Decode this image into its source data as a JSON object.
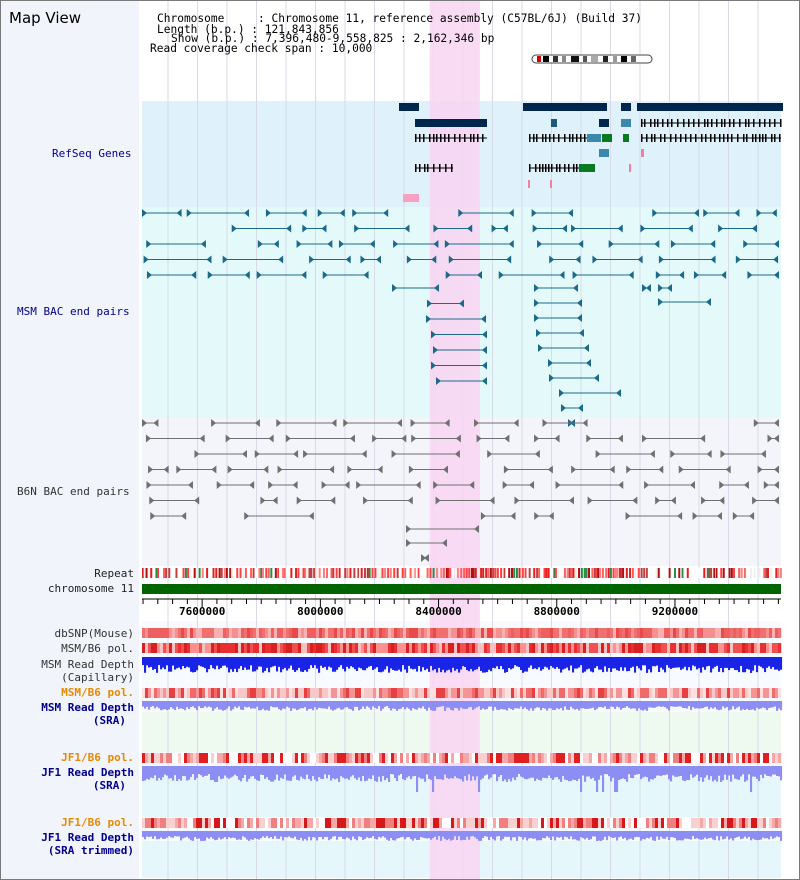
{
  "header": {
    "title": "Map View",
    "chromosome_label": "Chromosome",
    "chromosome_value": "Chromosome 11, reference assembly (C57BL/6J) (Build 37)",
    "length_label": "Length (b.p.)",
    "length_value": "121,843,856",
    "show_label": "Show (b.p.)",
    "show_value": "7,396,480-9,558,825 : 2,162,346 bp",
    "coverage_label": "Read coverage check span",
    "coverage_value": "10,000"
  },
  "tracks": {
    "refseq": "RefSeq Genes",
    "msm_bac": "MSM BAC end pairs",
    "b6n_bac": "B6N BAC end pairs",
    "repeat": "Repeat",
    "chromosome": "chromosome 11",
    "dbsnp": "dbSNP(Mouse)",
    "msm_b6_pol_1": "MSM/B6 pol.",
    "msm_depth_cap_1": "MSM Read Depth",
    "msm_depth_cap_2": "(Capillary)",
    "msm_b6_pol_2": "MSM/B6 pol.",
    "msm_depth_sra_1": "MSM Read Depth",
    "msm_depth_sra_2": "(SRA)",
    "jf1_b6_pol_1": "JF1/B6 pol.",
    "jf1_depth_sra_1": "JF1 Read Depth",
    "jf1_depth_sra_2": "(SRA)",
    "jf1_b6_pol_2": "JF1/B6 pol.",
    "jf1_depth_trim_1": "JF1 Read Depth",
    "jf1_depth_trim_2": "(SRA trimmed)"
  },
  "axis": {
    "ticks": [
      "7600000",
      "8000000",
      "8400000",
      "8800000",
      "9200000"
    ],
    "tick_values": [
      7600000,
      8000000,
      8400000,
      8800000,
      9200000
    ],
    "start": 7396480,
    "end": 9558825
  },
  "highlight": {
    "start": 8370000,
    "end": 8540000
  },
  "colors": {
    "highlight": "#f9d5f2",
    "refseq_bg": "#dff2fb",
    "msm_bg": "#e3f9fa",
    "b6n_bg": "#f4f5fa",
    "gene": "#00264d",
    "bac_msm": "#1b6a8a",
    "bac_b6n": "#707070",
    "chromosome": "#006400",
    "depth_msm": "#1a24e6",
    "depth_sra": "#8c8ef4"
  }
}
